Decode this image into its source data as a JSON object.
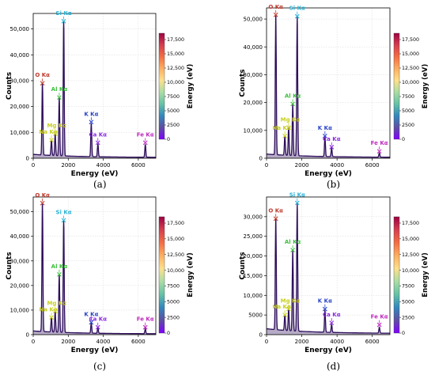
{
  "captions": [
    "(a)",
    "(b)",
    "(c)",
    "(d)"
  ],
  "colorbar_label": "Energy (eV)",
  "colorbar_ticks": [
    "17,500",
    "15,000",
    "12,500",
    "10,000",
    "7500",
    "5000",
    "2500",
    "0"
  ],
  "colors": {
    "O": "#c0392b",
    "Si": "#2bb3d6",
    "Al": "#3cbf3c",
    "Mg": "#c8cf1c",
    "Na": "#c8cf1c",
    "K": "#2a44c8",
    "Ca": "#8a2be2",
    "Fe": "#c02bbf",
    "spectrum": "#2e0f5c"
  },
  "chart_data": [
    {
      "type": "line",
      "xlabel": "Energy (eV)",
      "ylabel": "Counts",
      "xlim": [
        0,
        7000
      ],
      "ylim": [
        0,
        56000
      ],
      "xticks": [
        0,
        2000,
        4000,
        6000
      ],
      "xtick_labels": [
        "0",
        "2000",
        "4000",
        "6000"
      ],
      "yticks": [
        0,
        10000,
        20000,
        30000,
        40000,
        50000
      ],
      "ytick_labels": [
        "0",
        "10,000",
        "20,000",
        "30,000",
        "40,000",
        "50,000"
      ],
      "peaks": [
        {
          "label": "O Kα",
          "x": 525,
          "y": 29000,
          "el": "O"
        },
        {
          "label": "Na Kα",
          "x": 1040,
          "y": 7000,
          "el": "Na"
        },
        {
          "label": "Mg Kα",
          "x": 1254,
          "y": 9500,
          "el": "Mg"
        },
        {
          "label": "Al Kα",
          "x": 1487,
          "y": 23500,
          "el": "Al"
        },
        {
          "label": "Si Kα",
          "x": 1740,
          "y": 53000,
          "el": "Si"
        },
        {
          "label": "K Kα",
          "x": 3314,
          "y": 14000,
          "el": "K"
        },
        {
          "label": "Ca Kα",
          "x": 3692,
          "y": 6000,
          "el": "Ca"
        },
        {
          "label": "Fe Kα",
          "x": 6400,
          "y": 6000,
          "el": "Fe"
        }
      ]
    },
    {
      "type": "line",
      "xlabel": "Energy (eV)",
      "ylabel": "Counts",
      "xlim": [
        0,
        7000
      ],
      "ylim": [
        0,
        54000
      ],
      "xticks": [
        0,
        2000,
        4000,
        6000
      ],
      "xtick_labels": [
        "0",
        "2000",
        "4000",
        "6000"
      ],
      "yticks": [
        0,
        10000,
        20000,
        30000,
        40000,
        50000
      ],
      "ytick_labels": [
        "0",
        "10,000",
        "20,000",
        "30,000",
        "40,000",
        "50,000"
      ],
      "peaks": [
        {
          "label": "O Kα",
          "x": 525,
          "y": 51500,
          "el": "O"
        },
        {
          "label": "Na Kα",
          "x": 1040,
          "y": 8000,
          "el": "Na"
        },
        {
          "label": "Mg Kα",
          "x": 1254,
          "y": 11000,
          "el": "Mg"
        },
        {
          "label": "Al Kα",
          "x": 1487,
          "y": 19500,
          "el": "Al"
        },
        {
          "label": "Si Kα",
          "x": 1740,
          "y": 51000,
          "el": "Si"
        },
        {
          "label": "K Kα",
          "x": 3314,
          "y": 8000,
          "el": "K"
        },
        {
          "label": "Ca Kα",
          "x": 3692,
          "y": 4000,
          "el": "Ca"
        },
        {
          "label": "Fe Kα",
          "x": 6400,
          "y": 2500,
          "el": "Fe"
        }
      ]
    },
    {
      "type": "line",
      "xlabel": "Energy (eV)",
      "ylabel": "Counts",
      "xlim": [
        0,
        7000
      ],
      "ylim": [
        0,
        56000
      ],
      "xticks": [
        0,
        2000,
        4000,
        6000
      ],
      "xtick_labels": [
        "0",
        "2000",
        "4000",
        "6000"
      ],
      "yticks": [
        0,
        10000,
        20000,
        30000,
        40000,
        50000
      ],
      "ytick_labels": [
        "0",
        "10,000",
        "20,000",
        "30,000",
        "40,000",
        "50,000"
      ],
      "peaks": [
        {
          "label": "O Kα",
          "x": 525,
          "y": 53500,
          "el": "O"
        },
        {
          "label": "Na Kα",
          "x": 1040,
          "y": 7000,
          "el": "Na"
        },
        {
          "label": "Mg Kα",
          "x": 1254,
          "y": 9500,
          "el": "Mg"
        },
        {
          "label": "Al Kα",
          "x": 1487,
          "y": 24500,
          "el": "Al"
        },
        {
          "label": "Si Kα",
          "x": 1740,
          "y": 46500,
          "el": "Si"
        },
        {
          "label": "K Kα",
          "x": 3314,
          "y": 5000,
          "el": "K"
        },
        {
          "label": "Ca Kα",
          "x": 3692,
          "y": 3000,
          "el": "Ca"
        },
        {
          "label": "Fe Kα",
          "x": 6400,
          "y": 3000,
          "el": "Fe"
        }
      ]
    },
    {
      "type": "line",
      "xlabel": "Energy (eV)",
      "ylabel": "Counts",
      "xlim": [
        0,
        7000
      ],
      "ylim": [
        0,
        35000
      ],
      "xticks": [
        0,
        2000,
        4000,
        6000
      ],
      "xtick_labels": [
        "0",
        "2000",
        "4000",
        "6000"
      ],
      "yticks": [
        0,
        5000,
        10000,
        15000,
        20000,
        25000,
        30000
      ],
      "ytick_labels": [
        "0",
        "5000",
        "10,000",
        "15,000",
        "20,000",
        "25,000",
        "30,000"
      ],
      "peaks": [
        {
          "label": "O Kα",
          "x": 525,
          "y": 29500,
          "el": "O"
        },
        {
          "label": "Na Kα",
          "x": 1040,
          "y": 5000,
          "el": "Na"
        },
        {
          "label": "Mg Kα",
          "x": 1254,
          "y": 6500,
          "el": "Mg"
        },
        {
          "label": "Al Kα",
          "x": 1487,
          "y": 21500,
          "el": "Al"
        },
        {
          "label": "Si Kα",
          "x": 1740,
          "y": 33500,
          "el": "Si"
        },
        {
          "label": "K Kα",
          "x": 3314,
          "y": 6500,
          "el": "K"
        },
        {
          "label": "Ca Kα",
          "x": 3692,
          "y": 3000,
          "el": "Ca"
        },
        {
          "label": "Fe Kα",
          "x": 6400,
          "y": 2500,
          "el": "Fe"
        }
      ]
    }
  ]
}
